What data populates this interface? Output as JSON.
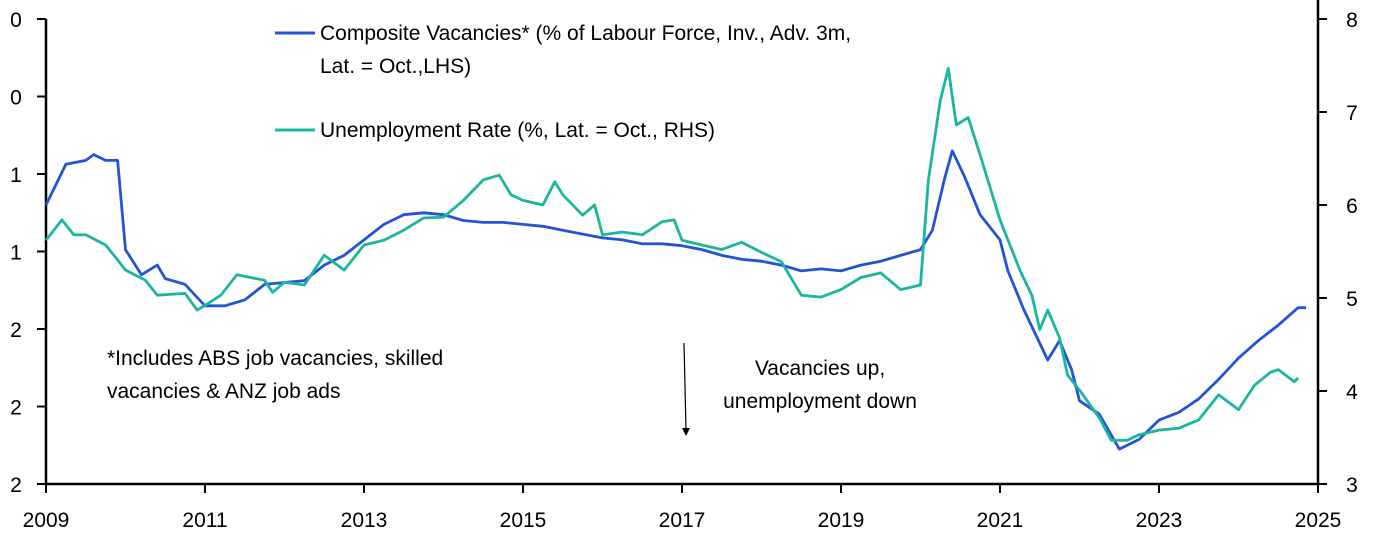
{
  "chart_data": {
    "type": "line",
    "title": "",
    "x_ticks": [
      "2009",
      "2011",
      "2013",
      "2015",
      "2017",
      "2019",
      "2021",
      "2023",
      "2025"
    ],
    "xlim": [
      2009,
      2025
    ],
    "left_axis": {
      "tick_labels": [
        "0",
        "0",
        "1",
        "1",
        "2",
        "2",
        "2"
      ],
      "ylim": [
        0,
        2.4
      ],
      "inverted": true
    },
    "right_axis": {
      "tick_labels": [
        "3",
        "4",
        "5",
        "6",
        "7",
        "8"
      ],
      "ylim": [
        3,
        8
      ]
    },
    "grid": false,
    "legend_placement": "top-center",
    "series": [
      {
        "name": "Composite Vacancies* (% of Labour Force, Inv., Adv. 3m, Lat. = Oct.,LHS)",
        "legend_line1": "Composite Vacancies* (% of Labour Force, Inv., Adv. 3m,",
        "legend_line2": "Lat. = Oct.,LHS)",
        "axis": "left",
        "color": "#2453d6",
        "x": [
          2009.0,
          2009.25,
          2009.5,
          2009.6,
          2009.75,
          2009.9,
          2010.0,
          2010.2,
          2010.4,
          2010.5,
          2010.75,
          2011.0,
          2011.25,
          2011.5,
          2011.75,
          2012.0,
          2012.25,
          2012.5,
          2012.75,
          2013.0,
          2013.25,
          2013.5,
          2013.75,
          2014.0,
          2014.25,
          2014.5,
          2014.75,
          2015.0,
          2015.25,
          2015.5,
          2015.75,
          2016.0,
          2016.25,
          2016.5,
          2016.75,
          2017.0,
          2017.25,
          2017.5,
          2017.75,
          2018.0,
          2018.25,
          2018.5,
          2018.75,
          2019.0,
          2019.25,
          2019.5,
          2019.75,
          2020.0,
          2020.15,
          2020.3,
          2020.4,
          2020.55,
          2020.75,
          2021.0,
          2021.1,
          2021.3,
          2021.6,
          2021.75,
          2021.9,
          2022.0,
          2022.25,
          2022.5,
          2022.75,
          2023.0,
          2023.25,
          2023.5,
          2023.75,
          2024.0,
          2024.25,
          2024.5,
          2024.75,
          2024.85
        ],
        "y": [
          0.96,
          0.75,
          0.73,
          0.7,
          0.73,
          0.73,
          1.19,
          1.32,
          1.27,
          1.34,
          1.37,
          1.48,
          1.48,
          1.45,
          1.37,
          1.36,
          1.35,
          1.27,
          1.22,
          1.14,
          1.06,
          1.01,
          1.0,
          1.01,
          1.04,
          1.05,
          1.05,
          1.06,
          1.07,
          1.09,
          1.11,
          1.13,
          1.14,
          1.16,
          1.16,
          1.17,
          1.19,
          1.22,
          1.24,
          1.25,
          1.27,
          1.3,
          1.29,
          1.3,
          1.27,
          1.25,
          1.22,
          1.19,
          1.09,
          0.83,
          0.68,
          0.81,
          1.01,
          1.14,
          1.3,
          1.5,
          1.76,
          1.66,
          1.81,
          1.97,
          2.04,
          2.22,
          2.17,
          2.07,
          2.03,
          1.96,
          1.86,
          1.75,
          1.66,
          1.58,
          1.49,
          1.49
        ]
      },
      {
        "name": "Unemployment Rate (%, Lat. = Oct., RHS)",
        "axis": "right",
        "color": "#1bb5a0",
        "x": [
          2009.0,
          2009.2,
          2009.35,
          2009.5,
          2009.75,
          2009.9,
          2010.0,
          2010.25,
          2010.4,
          2010.75,
          2010.9,
          2011.0,
          2011.2,
          2011.4,
          2011.75,
          2011.85,
          2012.0,
          2012.25,
          2012.5,
          2012.75,
          2013.0,
          2013.25,
          2013.5,
          2013.75,
          2014.0,
          2014.25,
          2014.5,
          2014.7,
          2014.85,
          2015.0,
          2015.25,
          2015.4,
          2015.5,
          2015.75,
          2015.9,
          2016.0,
          2016.25,
          2016.5,
          2016.75,
          2016.9,
          2017.0,
          2017.25,
          2017.5,
          2017.75,
          2018.0,
          2018.25,
          2018.5,
          2018.75,
          2019.0,
          2019.25,
          2019.5,
          2019.75,
          2020.0,
          2020.1,
          2020.25,
          2020.35,
          2020.45,
          2020.6,
          2020.75,
          2021.0,
          2021.25,
          2021.4,
          2021.5,
          2021.6,
          2021.75,
          2021.85,
          2022.0,
          2022.25,
          2022.4,
          2022.6,
          2022.75,
          2023.0,
          2023.25,
          2023.5,
          2023.75,
          2024.0,
          2024.2,
          2024.4,
          2024.5,
          2024.7,
          2024.75
        ],
        "y": [
          5.62,
          5.84,
          5.68,
          5.68,
          5.57,
          5.41,
          5.3,
          5.19,
          5.03,
          5.05,
          4.87,
          4.92,
          5.03,
          5.25,
          5.19,
          5.06,
          5.17,
          5.14,
          5.46,
          5.3,
          5.57,
          5.62,
          5.73,
          5.86,
          5.87,
          6.05,
          6.27,
          6.32,
          6.11,
          6.05,
          6.0,
          6.25,
          6.11,
          5.89,
          6.0,
          5.68,
          5.71,
          5.68,
          5.82,
          5.84,
          5.62,
          5.57,
          5.52,
          5.6,
          5.49,
          5.39,
          5.03,
          5.01,
          5.09,
          5.22,
          5.27,
          5.09,
          5.14,
          6.27,
          7.13,
          7.47,
          6.86,
          6.94,
          6.54,
          5.84,
          5.3,
          5.03,
          4.66,
          4.87,
          4.57,
          4.17,
          4.01,
          3.71,
          3.47,
          3.47,
          3.53,
          3.58,
          3.6,
          3.69,
          3.96,
          3.8,
          4.06,
          4.2,
          4.23,
          4.1,
          4.14
        ]
      }
    ],
    "annotations": {
      "footnote_line1": "*Includes ABS job vacancies, skilled",
      "footnote_line2": "vacancies & ANZ job ads",
      "arrow_label_line1": "Vacancies up,",
      "arrow_label_line2": "unemployment down",
      "arrow_direction": "down"
    }
  }
}
